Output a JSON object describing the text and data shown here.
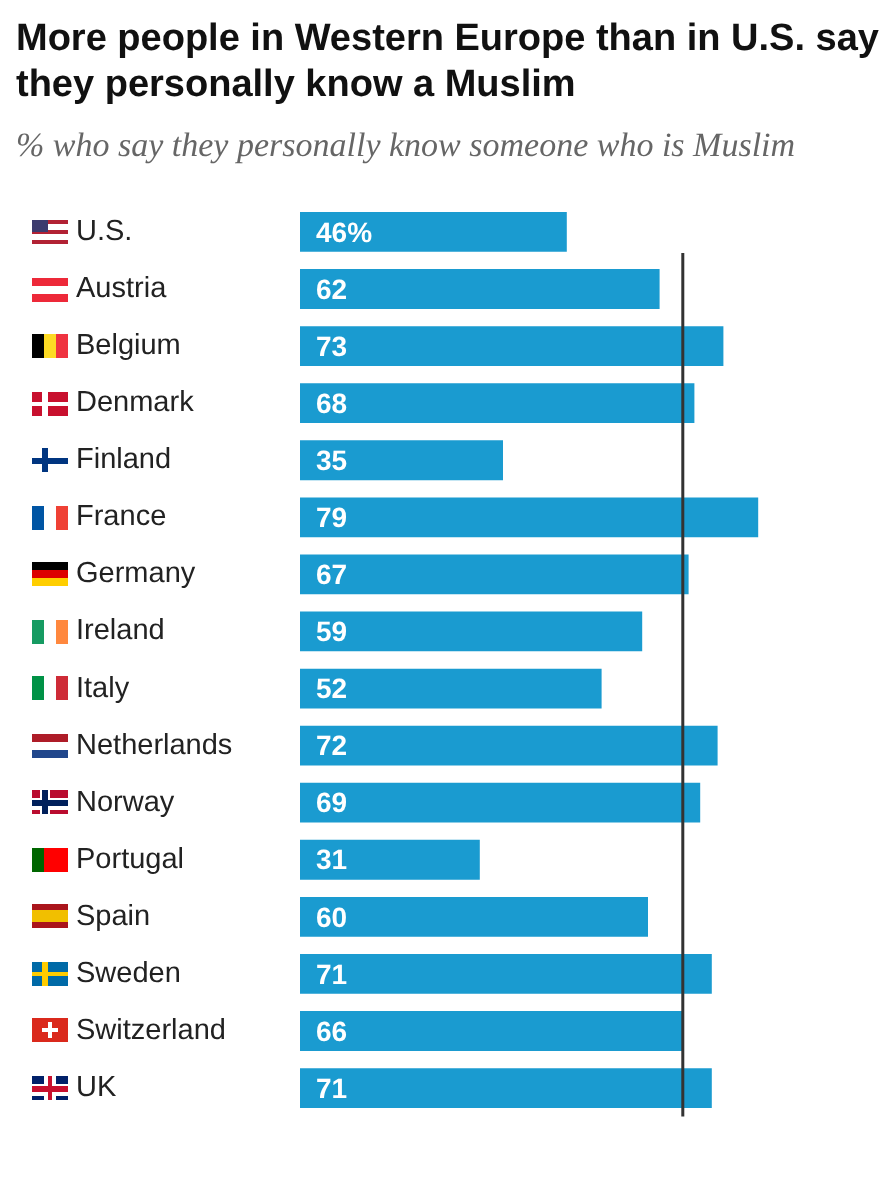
{
  "chart_data": {
    "type": "bar",
    "orientation": "horizontal",
    "title": "More people in Western Europe than in U.S. say they personally know a Muslim",
    "subtitle": "% who say they personally know someone who is Muslim",
    "categories": [
      "U.S.",
      "Austria",
      "Belgium",
      "Denmark",
      "Finland",
      "France",
      "Germany",
      "Ireland",
      "Italy",
      "Netherlands",
      "Norway",
      "Portugal",
      "Spain",
      "Sweden",
      "Switzerland",
      "UK"
    ],
    "values": [
      46,
      62,
      73,
      68,
      35,
      79,
      67,
      59,
      52,
      72,
      69,
      31,
      60,
      71,
      66,
      71
    ],
    "value_labels": [
      "46%",
      "62",
      "73",
      "68",
      "35",
      "79",
      "67",
      "59",
      "52",
      "72",
      "69",
      "31",
      "60",
      "71",
      "66",
      "71"
    ],
    "color": "#1a9bd0",
    "tick_labels": "y",
    "legend": false,
    "ref_lines": [
      {
        "axis": "x",
        "value": 66,
        "color": "#333333"
      }
    ]
  }
}
